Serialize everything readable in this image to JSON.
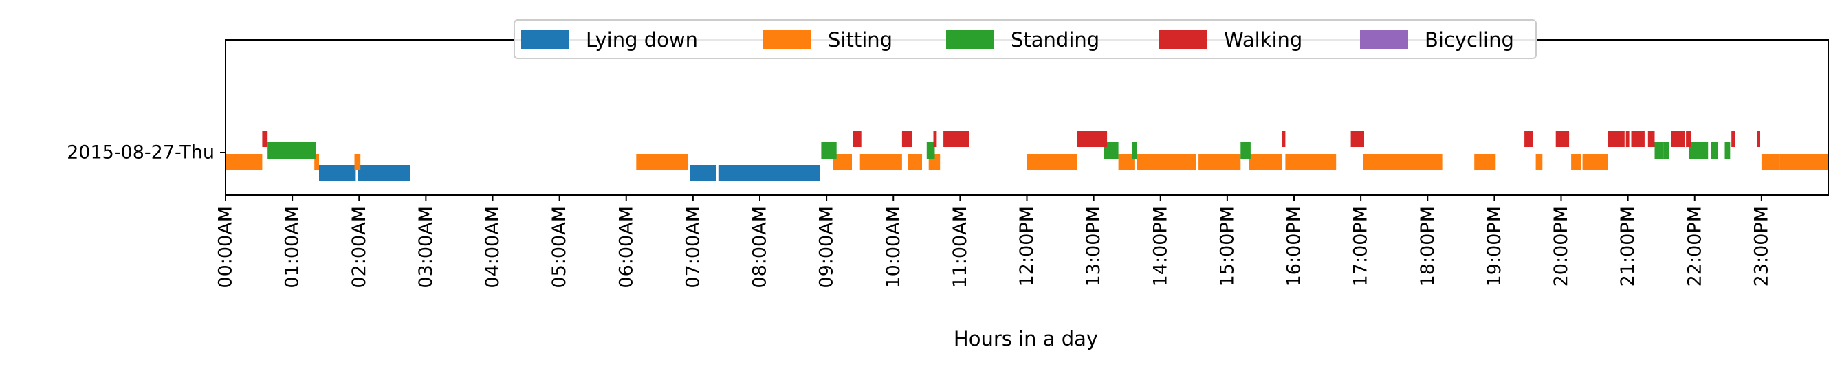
{
  "chart_data": {
    "type": "bar",
    "subtype": "timeline",
    "xlabel": "Hours in a day",
    "ylabel": "",
    "xlim": [
      0,
      24
    ],
    "x_ticks": [
      {
        "value": 0,
        "label": "00:00AM"
      },
      {
        "value": 1,
        "label": "01:00AM"
      },
      {
        "value": 2,
        "label": "02:00AM"
      },
      {
        "value": 3,
        "label": "03:00AM"
      },
      {
        "value": 4,
        "label": "04:00AM"
      },
      {
        "value": 5,
        "label": "05:00AM"
      },
      {
        "value": 6,
        "label": "06:00AM"
      },
      {
        "value": 7,
        "label": "07:00AM"
      },
      {
        "value": 8,
        "label": "08:00AM"
      },
      {
        "value": 9,
        "label": "09:00AM"
      },
      {
        "value": 10,
        "label": "10:00AM"
      },
      {
        "value": 11,
        "label": "11:00AM"
      },
      {
        "value": 12,
        "label": "12:00PM"
      },
      {
        "value": 13,
        "label": "13:00PM"
      },
      {
        "value": 14,
        "label": "14:00PM"
      },
      {
        "value": 15,
        "label": "15:00PM"
      },
      {
        "value": 16,
        "label": "16:00PM"
      },
      {
        "value": 17,
        "label": "17:00PM"
      },
      {
        "value": 18,
        "label": "18:00PM"
      },
      {
        "value": 19,
        "label": "19:00PM"
      },
      {
        "value": 20,
        "label": "20:00PM"
      },
      {
        "value": 21,
        "label": "21:00PM"
      },
      {
        "value": 22,
        "label": "22:00PM"
      },
      {
        "value": 23,
        "label": "23:00PM"
      }
    ],
    "y_categories": [
      "2015-08-27-Thu"
    ],
    "grid": false,
    "legend_position": "top-center",
    "series": [
      {
        "name": "Lying down",
        "color": "#1f77b4",
        "intervals": [
          [
            1.4,
            1.95
          ],
          [
            1.98,
            2.77
          ],
          [
            6.95,
            7.35
          ],
          [
            7.38,
            8.9
          ]
        ]
      },
      {
        "name": "Sitting",
        "color": "#ff7f0e",
        "intervals": [
          [
            0.0,
            0.55
          ],
          [
            1.33,
            1.4
          ],
          [
            1.93,
            2.02
          ],
          [
            6.15,
            6.92
          ],
          [
            9.1,
            9.38
          ],
          [
            9.5,
            10.13
          ],
          [
            10.22,
            10.43
          ],
          [
            10.53,
            10.7
          ],
          [
            12.0,
            12.75
          ],
          [
            13.37,
            13.62
          ],
          [
            13.65,
            14.53
          ],
          [
            14.57,
            15.2
          ],
          [
            15.32,
            15.82
          ],
          [
            15.87,
            16.63
          ],
          [
            17.03,
            18.22
          ],
          [
            18.7,
            19.02
          ],
          [
            19.62,
            19.72
          ],
          [
            20.15,
            20.3
          ],
          [
            20.32,
            20.7
          ],
          [
            23.0,
            23.27
          ],
          [
            23.27,
            24.0
          ]
        ]
      },
      {
        "name": "Standing",
        "color": "#2ca02c",
        "intervals": [
          [
            0.63,
            1.35
          ],
          [
            8.92,
            9.15
          ],
          [
            10.5,
            10.62
          ],
          [
            13.15,
            13.37
          ],
          [
            13.58,
            13.65
          ],
          [
            15.2,
            15.35
          ],
          [
            21.4,
            21.52
          ],
          [
            21.53,
            21.62
          ],
          [
            21.92,
            22.2
          ],
          [
            22.25,
            22.35
          ],
          [
            22.45,
            22.53
          ]
        ]
      },
      {
        "name": "Walking",
        "color": "#d62728",
        "intervals": [
          [
            0.55,
            0.63
          ],
          [
            9.4,
            9.52
          ],
          [
            10.13,
            10.28
          ],
          [
            10.6,
            10.65
          ],
          [
            10.75,
            11.13
          ],
          [
            12.75,
            13.05
          ],
          [
            13.05,
            13.2
          ],
          [
            15.82,
            15.87
          ],
          [
            16.85,
            17.05
          ],
          [
            19.45,
            19.58
          ],
          [
            19.92,
            20.12
          ],
          [
            20.7,
            20.95
          ],
          [
            20.97,
            21.02
          ],
          [
            21.05,
            21.25
          ],
          [
            21.3,
            21.4
          ],
          [
            21.65,
            21.72
          ],
          [
            21.72,
            21.85
          ],
          [
            21.87,
            21.95
          ],
          [
            22.55,
            22.6
          ],
          [
            22.93,
            22.98
          ]
        ]
      },
      {
        "name": "Bicycling",
        "color": "#9467bd",
        "intervals": []
      }
    ]
  }
}
